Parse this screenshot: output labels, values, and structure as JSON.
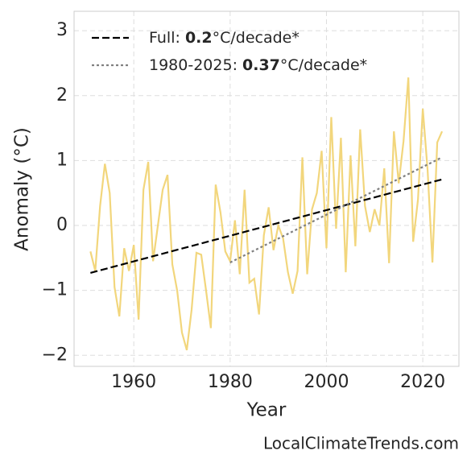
{
  "chart_data": {
    "type": "line",
    "x": [
      1951,
      1952,
      1953,
      1954,
      1955,
      1956,
      1957,
      1958,
      1959,
      1960,
      1961,
      1962,
      1963,
      1964,
      1965,
      1966,
      1967,
      1968,
      1969,
      1970,
      1971,
      1972,
      1973,
      1974,
      1975,
      1976,
      1977,
      1978,
      1979,
      1980,
      1981,
      1982,
      1983,
      1984,
      1985,
      1986,
      1987,
      1988,
      1989,
      1990,
      1991,
      1992,
      1993,
      1994,
      1995,
      1996,
      1997,
      1998,
      1999,
      2000,
      2001,
      2002,
      2003,
      2004,
      2005,
      2006,
      2007,
      2008,
      2009,
      2010,
      2011,
      2012,
      2013,
      2014,
      2015,
      2016,
      2017,
      2018,
      2019,
      2020,
      2021,
      2022,
      2023,
      2024
    ],
    "series": [
      {
        "color": "#f2d67c",
        "values": [
          -0.4,
          -0.7,
          0.3,
          0.95,
          0.5,
          -0.95,
          -1.4,
          -0.35,
          -0.7,
          -0.3,
          -1.45,
          0.55,
          0.98,
          -0.55,
          0.0,
          0.55,
          0.78,
          -0.6,
          -1.0,
          -1.65,
          -1.92,
          -1.3,
          -0.42,
          -0.45,
          -1.0,
          -1.58,
          0.63,
          0.2,
          -0.4,
          -0.55,
          0.08,
          -0.75,
          0.55,
          -0.88,
          -0.82,
          -1.37,
          -0.15,
          0.28,
          -0.38,
          0.0,
          -0.2,
          -0.72,
          -1.05,
          -0.7,
          1.05,
          -0.75,
          0.25,
          0.5,
          1.15,
          -0.35,
          1.67,
          -0.05,
          1.35,
          -0.72,
          1.08,
          -0.32,
          1.48,
          0.3,
          -0.1,
          0.25,
          0.0,
          0.88,
          -0.58,
          1.45,
          0.65,
          1.3,
          2.28,
          -0.25,
          0.4,
          1.8,
          0.85,
          -0.57,
          1.28,
          1.45
        ]
      },
      {
        "name_parts": [
          "Full: ",
          "0.2",
          "°C/decade*"
        ],
        "color": "#000000",
        "dash": "dashed",
        "x": [
          1951,
          2024
        ],
        "values": [
          -0.73,
          0.71
        ]
      },
      {
        "name_parts": [
          "1980-2025: ",
          "0.37",
          "°C/decade*"
        ],
        "color": "#808080",
        "dash": "dotted",
        "x": [
          1980,
          2024
        ],
        "values": [
          -0.57,
          1.05
        ]
      }
    ],
    "xlabel": "Year",
    "ylabel": "Anomaly (°C)",
    "xlim": [
      1947.6,
      2027.5
    ],
    "ylim": [
      -2.17,
      3.3
    ],
    "xticks": [
      1960,
      1980,
      2000,
      2020
    ],
    "yticks": [
      {
        "value": -2,
        "label": "−2"
      },
      {
        "value": -1,
        "label": "−1"
      },
      0,
      1,
      2,
      3
    ],
    "grid": true,
    "legend": "upper left",
    "watermark": "LocalClimateTrends.com"
  }
}
